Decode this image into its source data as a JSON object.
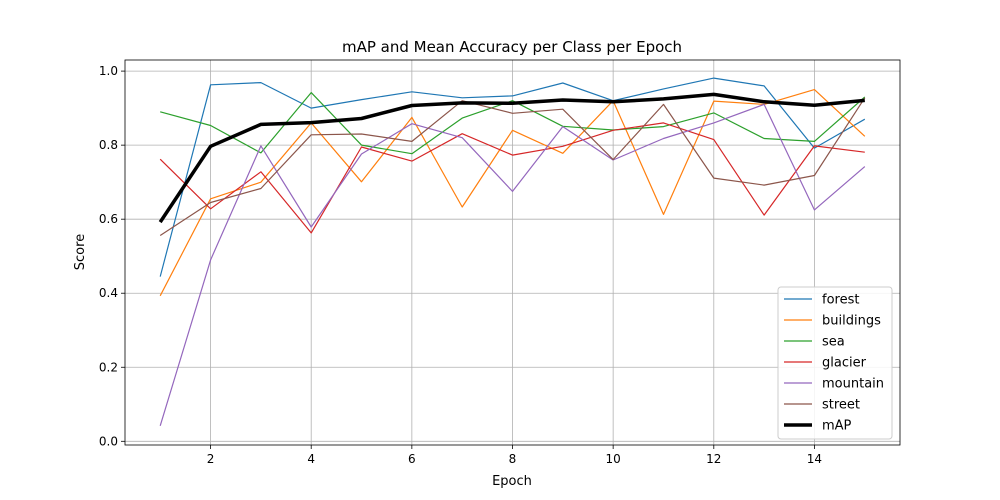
{
  "chart_data": {
    "type": "line",
    "title": "mAP and Mean Accuracy per Class per Epoch",
    "xlabel": "Epoch",
    "ylabel": "Score",
    "xlim": [
      0.3,
      15.7
    ],
    "ylim": [
      -0.01,
      1.03
    ],
    "x_ticks": [
      2,
      4,
      6,
      8,
      10,
      12,
      14
    ],
    "y_ticks": [
      0.0,
      0.2,
      0.4,
      0.6,
      0.8,
      1.0
    ],
    "x_tick_labels": [
      "2",
      "4",
      "6",
      "8",
      "10",
      "12",
      "14"
    ],
    "y_tick_labels": [
      "0.0",
      "0.2",
      "0.4",
      "0.6",
      "0.8",
      "1.0"
    ],
    "grid": true,
    "legend_position": "lower-right",
    "x": [
      1,
      2,
      3,
      4,
      5,
      6,
      7,
      8,
      9,
      10,
      11,
      12,
      13,
      14,
      15
    ],
    "series": [
      {
        "name": "forest",
        "color": "#1f77b4",
        "width": 1.2,
        "values": [
          0.445,
          0.963,
          0.969,
          0.9,
          0.923,
          0.944,
          0.928,
          0.933,
          0.968,
          0.92,
          0.952,
          0.981,
          0.96,
          0.792,
          0.87
        ]
      },
      {
        "name": "buildings",
        "color": "#ff7f0e",
        "width": 1.2,
        "values": [
          0.393,
          0.655,
          0.7,
          0.86,
          0.701,
          0.875,
          0.633,
          0.84,
          0.778,
          0.92,
          0.613,
          0.919,
          0.91,
          0.95,
          0.824
        ]
      },
      {
        "name": "sea",
        "color": "#2ca02c",
        "width": 1.2,
        "values": [
          0.89,
          0.853,
          0.779,
          0.942,
          0.8,
          0.777,
          0.873,
          0.92,
          0.851,
          0.841,
          0.85,
          0.887,
          0.818,
          0.81,
          0.93
        ]
      },
      {
        "name": "glacier",
        "color": "#d62728",
        "width": 1.2,
        "values": [
          0.762,
          0.628,
          0.728,
          0.563,
          0.795,
          0.757,
          0.831,
          0.773,
          0.797,
          0.84,
          0.86,
          0.815,
          0.611,
          0.798,
          0.781
        ]
      },
      {
        "name": "mountain",
        "color": "#9467bd",
        "width": 1.2,
        "values": [
          0.042,
          0.49,
          0.798,
          0.579,
          0.776,
          0.858,
          0.82,
          0.675,
          0.85,
          0.76,
          0.818,
          0.86,
          0.91,
          0.625,
          0.742
        ]
      },
      {
        "name": "street",
        "color": "#8c564b",
        "width": 1.2,
        "values": [
          0.556,
          0.645,
          0.683,
          0.828,
          0.83,
          0.81,
          0.92,
          0.886,
          0.897,
          0.761,
          0.91,
          0.711,
          0.692,
          0.718,
          0.928
        ]
      },
      {
        "name": "mAP",
        "color": "#000000",
        "width": 3.5,
        "values": [
          0.592,
          0.797,
          0.856,
          0.861,
          0.872,
          0.907,
          0.914,
          0.913,
          0.922,
          0.917,
          0.925,
          0.937,
          0.917,
          0.908,
          0.921
        ]
      }
    ]
  }
}
